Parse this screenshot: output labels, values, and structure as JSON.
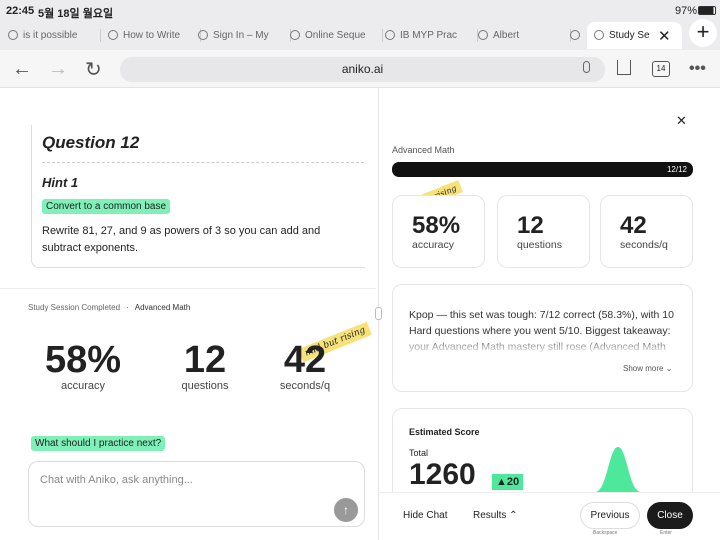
{
  "status": {
    "time": "22:45",
    "date": "5월 18일 월요일",
    "battery": "97%"
  },
  "tabs": [
    "is it possible",
    "How to Write",
    "Sign In – My",
    "Online Seque",
    "IB MYP Prac",
    "Albert",
    "Study Se"
  ],
  "address": {
    "url": "aniko.ai",
    "tab_count": "14"
  },
  "left": {
    "question": "Question 12",
    "hint": "Hint 1",
    "highlight": "Convert to a common base",
    "body": "Rewrite 81, 27, and 9 as powers of 3 so you can add and subtract exponents.",
    "session": "Study Session Completed",
    "separator": "·",
    "subject": "Advanced Math",
    "stats": [
      {
        "value": "58%",
        "label": "accuracy"
      },
      {
        "value": "12",
        "label": "questions"
      },
      {
        "value": "42",
        "label": "seconds/q"
      }
    ],
    "sticker": "mid but rising",
    "suggestion": "What should I practice next?",
    "placeholder": "Chat with Aniko, ask anything..."
  },
  "right": {
    "subject": "Advanced Math",
    "progress": "12/12",
    "sticker": "mid but rising",
    "stats": [
      {
        "value": "58%",
        "label": "accuracy"
      },
      {
        "value": "12",
        "label": "questions"
      },
      {
        "value": "42",
        "label": "seconds/q"
      }
    ],
    "summary": "Kpop — this set was tough: 7/12 correct (58.3%), with 10 Hard questions where you went 5/10. Biggest takeaway: your Advanced Math mastery still rose (Advanced Math",
    "show_more": "Show more",
    "score_title": "Estimated Score",
    "total_label": "Total",
    "total": "1260",
    "delta": "▲20"
  },
  "footer": {
    "hide_chat": "Hide Chat",
    "results": "Results",
    "previous": "Previous",
    "previous_key": "Backspace",
    "close": "Close",
    "close_key": "Enter"
  }
}
